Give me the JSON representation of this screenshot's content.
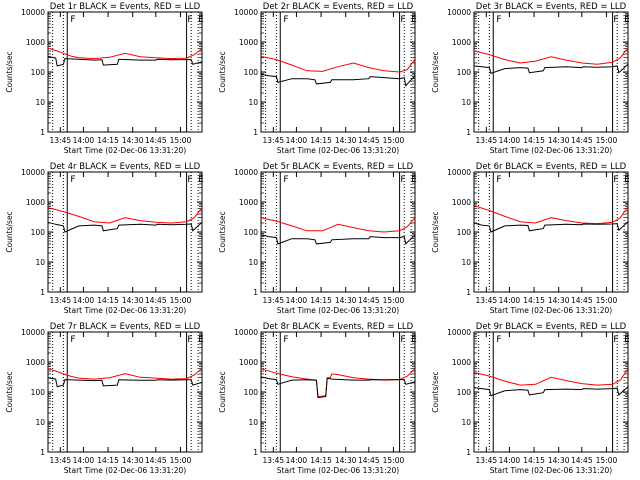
{
  "chart_data": [
    {
      "type": "line",
      "title": "Det 1r BLACK = Events, RED = LLD",
      "ylabel": "Counts/sec",
      "xlabel": "Start Time (02-Dec-06 13:31:20)",
      "yscale": "log",
      "ylim": [
        1,
        10000
      ],
      "yticks": [
        1,
        10,
        100,
        1000,
        10000
      ],
      "ytick_labels": [
        "1",
        "10",
        "100",
        "1000",
        "10000"
      ],
      "xtick_labels": [
        "13:45",
        "14:00",
        "14:15",
        "14:30",
        "14:45",
        "15:00"
      ],
      "flags": [
        "F",
        "F",
        "E"
      ],
      "series": [
        {
          "color": "#ff0000",
          "x": [
            0,
            0.05,
            0.1,
            0.15,
            0.2,
            0.3,
            0.4,
            0.5,
            0.6,
            0.7,
            0.8,
            0.9,
            0.95,
            1
          ],
          "y": [
            620,
            520,
            420,
            340,
            300,
            280,
            310,
            420,
            320,
            300,
            280,
            290,
            380,
            600
          ]
        },
        {
          "color": "#000000",
          "x": [
            0,
            0.05,
            0.06,
            0.1,
            0.11,
            0.2,
            0.3,
            0.35,
            0.36,
            0.45,
            0.46,
            0.6,
            0.7,
            0.71,
            0.8,
            0.9,
            0.93,
            0.94,
            1
          ],
          "y": [
            330,
            290,
            160,
            180,
            280,
            265,
            250,
            255,
            170,
            180,
            265,
            250,
            250,
            265,
            255,
            260,
            260,
            180,
            220
          ]
        }
      ]
    },
    {
      "type": "line",
      "title": "Det 2r BLACK = Events, RED = LLD",
      "ylabel": "Counts/sec",
      "xlabel": "Start Time (02-Dec-06 13:31:20)",
      "yscale": "log",
      "ylim": [
        1,
        10000
      ],
      "yticks": [
        1,
        10,
        100,
        1000,
        10000
      ],
      "ytick_labels": [
        "1",
        "10",
        "100",
        "1000",
        "10000"
      ],
      "xtick_labels": [
        "13:45",
        "14:00",
        "14:15",
        "14:30",
        "14:45",
        "15:00"
      ],
      "flags": [
        "F",
        "F",
        "E"
      ],
      "series": [
        {
          "color": "#ff0000",
          "x": [
            0,
            0.1,
            0.2,
            0.3,
            0.4,
            0.5,
            0.6,
            0.7,
            0.8,
            0.9,
            0.95,
            1
          ],
          "y": [
            330,
            260,
            170,
            110,
            105,
            150,
            200,
            140,
            110,
            100,
            120,
            270
          ]
        },
        {
          "color": "#000000",
          "x": [
            0,
            0.05,
            0.1,
            0.11,
            0.2,
            0.3,
            0.35,
            0.36,
            0.45,
            0.46,
            0.6,
            0.7,
            0.71,
            0.8,
            0.9,
            0.93,
            0.94,
            1
          ],
          "y": [
            85,
            75,
            70,
            45,
            60,
            60,
            55,
            40,
            45,
            55,
            55,
            60,
            70,
            65,
            60,
            65,
            35,
            75
          ]
        }
      ]
    },
    {
      "type": "line",
      "title": "Det 3r BLACK = Events, RED = LLD",
      "ylabel": "Counts/sec",
      "xlabel": "Start Time (02-Dec-06 13:31:20)",
      "yscale": "log",
      "ylim": [
        1,
        10000
      ],
      "yticks": [
        1,
        10,
        100,
        1000,
        10000
      ],
      "ytick_labels": [
        "1",
        "10",
        "100",
        "1000",
        "10000"
      ],
      "xtick_labels": [
        "13:45",
        "14:00",
        "14:15",
        "14:30",
        "14:45",
        "15:00"
      ],
      "flags": [
        "F",
        "F",
        "E"
      ],
      "series": [
        {
          "color": "#ff0000",
          "x": [
            0,
            0.1,
            0.2,
            0.3,
            0.4,
            0.5,
            0.6,
            0.7,
            0.8,
            0.9,
            0.95,
            1
          ],
          "y": [
            500,
            380,
            260,
            200,
            230,
            320,
            250,
            200,
            180,
            210,
            300,
            650
          ]
        },
        {
          "color": "#000000",
          "x": [
            0,
            0.05,
            0.1,
            0.11,
            0.2,
            0.3,
            0.35,
            0.36,
            0.45,
            0.46,
            0.6,
            0.7,
            0.71,
            0.8,
            0.9,
            0.93,
            0.94,
            1
          ],
          "y": [
            160,
            150,
            140,
            90,
            130,
            140,
            135,
            95,
            110,
            140,
            150,
            140,
            150,
            145,
            150,
            160,
            95,
            180
          ]
        }
      ]
    },
    {
      "type": "line",
      "title": "Det 4r BLACK = Events, RED = LLD",
      "ylabel": "Counts/sec",
      "xlabel": "Start Time (02-Dec-06 13:31:20)",
      "yscale": "log",
      "ylim": [
        1,
        10000
      ],
      "yticks": [
        1,
        10,
        100,
        1000,
        10000
      ],
      "ytick_labels": [
        "1",
        "10",
        "100",
        "1000",
        "10000"
      ],
      "xtick_labels": [
        "13:45",
        "14:00",
        "14:15",
        "14:30",
        "14:45",
        "15:00"
      ],
      "flags": [
        "F",
        "F",
        "E"
      ],
      "series": [
        {
          "color": "#ff0000",
          "x": [
            0,
            0.1,
            0.2,
            0.3,
            0.4,
            0.5,
            0.6,
            0.7,
            0.8,
            0.9,
            0.95,
            1
          ],
          "y": [
            650,
            480,
            330,
            220,
            200,
            300,
            240,
            210,
            200,
            220,
            300,
            650
          ]
        },
        {
          "color": "#000000",
          "x": [
            0,
            0.05,
            0.1,
            0.11,
            0.2,
            0.3,
            0.35,
            0.36,
            0.45,
            0.46,
            0.6,
            0.7,
            0.71,
            0.8,
            0.9,
            0.93,
            0.94,
            1
          ],
          "y": [
            210,
            180,
            160,
            100,
            160,
            170,
            160,
            110,
            130,
            170,
            180,
            170,
            180,
            175,
            180,
            185,
            110,
            210
          ]
        }
      ]
    },
    {
      "type": "line",
      "title": "Det 5r BLACK = Events, RED = LLD",
      "ylabel": "Counts/sec",
      "xlabel": "Start Time (02-Dec-06 13:31:20)",
      "yscale": "log",
      "ylim": [
        1,
        10000
      ],
      "yticks": [
        1,
        10,
        100,
        1000,
        10000
      ],
      "ytick_labels": [
        "1",
        "10",
        "100",
        "1000",
        "10000"
      ],
      "xtick_labels": [
        "13:45",
        "14:00",
        "14:15",
        "14:30",
        "14:45",
        "15:00"
      ],
      "flags": [
        "F",
        "F",
        "E"
      ],
      "series": [
        {
          "color": "#ff0000",
          "x": [
            0,
            0.1,
            0.2,
            0.3,
            0.4,
            0.5,
            0.6,
            0.7,
            0.8,
            0.9,
            0.95,
            1
          ],
          "y": [
            300,
            230,
            160,
            110,
            110,
            180,
            140,
            110,
            100,
            110,
            150,
            300
          ]
        },
        {
          "color": "#000000",
          "x": [
            0,
            0.05,
            0.1,
            0.11,
            0.2,
            0.3,
            0.35,
            0.36,
            0.45,
            0.46,
            0.6,
            0.7,
            0.71,
            0.8,
            0.9,
            0.93,
            0.94,
            1
          ],
          "y": [
            80,
            70,
            65,
            40,
            60,
            60,
            55,
            40,
            45,
            55,
            60,
            60,
            70,
            65,
            65,
            70,
            40,
            80
          ]
        }
      ]
    },
    {
      "type": "line",
      "title": "Det 6r BLACK = Events, RED = LLD",
      "ylabel": "Counts/sec",
      "xlabel": "Start Time (02-Dec-06 13:31:20)",
      "yscale": "log",
      "ylim": [
        1,
        10000
      ],
      "yticks": [
        1,
        10,
        100,
        1000,
        10000
      ],
      "ytick_labels": [
        "1",
        "10",
        "100",
        "1000",
        "10000"
      ],
      "xtick_labels": [
        "13:45",
        "14:00",
        "14:15",
        "14:30",
        "14:45",
        "15:00"
      ],
      "flags": [
        "F",
        "F",
        "E"
      ],
      "series": [
        {
          "color": "#ff0000",
          "x": [
            0,
            0.1,
            0.2,
            0.3,
            0.4,
            0.5,
            0.6,
            0.7,
            0.8,
            0.9,
            0.95,
            1
          ],
          "y": [
            750,
            520,
            330,
            220,
            200,
            300,
            240,
            200,
            190,
            210,
            300,
            700
          ]
        },
        {
          "color": "#000000",
          "x": [
            0,
            0.05,
            0.1,
            0.11,
            0.2,
            0.3,
            0.35,
            0.36,
            0.45,
            0.46,
            0.6,
            0.7,
            0.71,
            0.8,
            0.9,
            0.93,
            0.94,
            1
          ],
          "y": [
            200,
            170,
            160,
            100,
            160,
            170,
            165,
            110,
            130,
            170,
            180,
            175,
            185,
            180,
            185,
            190,
            115,
            220
          ]
        }
      ]
    },
    {
      "type": "line",
      "title": "Det 7r BLACK = Events, RED = LLD",
      "ylabel": "Counts/sec",
      "xlabel": "Start Time (02-Dec-06 13:31:20)",
      "yscale": "log",
      "ylim": [
        1,
        10000
      ],
      "yticks": [
        1,
        10,
        100,
        1000,
        10000
      ],
      "ytick_labels": [
        "1",
        "10",
        "100",
        "1000",
        "10000"
      ],
      "xtick_labels": [
        "13:45",
        "14:00",
        "14:15",
        "14:30",
        "14:45",
        "15:00"
      ],
      "flags": [
        "F",
        "F",
        "E"
      ],
      "series": [
        {
          "color": "#ff0000",
          "x": [
            0,
            0.05,
            0.1,
            0.15,
            0.2,
            0.3,
            0.4,
            0.5,
            0.6,
            0.7,
            0.8,
            0.9,
            0.95,
            1
          ],
          "y": [
            600,
            500,
            400,
            330,
            290,
            270,
            300,
            410,
            310,
            290,
            270,
            280,
            370,
            620
          ]
        },
        {
          "color": "#000000",
          "x": [
            0,
            0.05,
            0.06,
            0.1,
            0.11,
            0.2,
            0.3,
            0.35,
            0.36,
            0.45,
            0.46,
            0.6,
            0.7,
            0.71,
            0.8,
            0.9,
            0.93,
            0.94,
            1
          ],
          "y": [
            300,
            270,
            150,
            170,
            260,
            250,
            240,
            245,
            160,
            170,
            255,
            245,
            245,
            255,
            250,
            255,
            255,
            170,
            210
          ]
        }
      ]
    },
    {
      "type": "line",
      "title": "Det 8r BLACK = Events, RED = LLD",
      "ylabel": "Counts/sec",
      "xlabel": "Start Time (02-Dec-06 13:31:20)",
      "yscale": "log",
      "ylim": [
        1,
        10000
      ],
      "yticks": [
        1,
        10,
        100,
        1000,
        10000
      ],
      "ytick_labels": [
        "1",
        "10",
        "100",
        "1000",
        "10000"
      ],
      "xtick_labels": [
        "13:45",
        "14:00",
        "14:15",
        "14:30",
        "14:45",
        "15:00"
      ],
      "flags": [
        "F",
        "F",
        "E"
      ],
      "series": [
        {
          "color": "#ff0000",
          "x": [
            0,
            0.1,
            0.2,
            0.3,
            0.36,
            0.37,
            0.42,
            0.43,
            0.45,
            0.46,
            0.5,
            0.6,
            0.7,
            0.8,
            0.9,
            0.95,
            1
          ],
          "y": [
            600,
            420,
            320,
            270,
            250,
            70,
            75,
            300,
            300,
            400,
            380,
            300,
            270,
            250,
            260,
            340,
            600
          ]
        },
        {
          "color": "#000000",
          "x": [
            0,
            0.05,
            0.1,
            0.11,
            0.2,
            0.3,
            0.36,
            0.37,
            0.42,
            0.43,
            0.45,
            0.46,
            0.6,
            0.7,
            0.71,
            0.8,
            0.9,
            0.93,
            0.94,
            1
          ],
          "y": [
            320,
            280,
            260,
            180,
            250,
            255,
            245,
            65,
            70,
            280,
            280,
            270,
            250,
            250,
            260,
            255,
            260,
            260,
            180,
            220
          ]
        }
      ]
    },
    {
      "type": "line",
      "title": "Det 9r BLACK = Events, RED = LLD",
      "ylabel": "Counts/sec",
      "xlabel": "Start Time (02-Dec-06 13:31:20)",
      "yscale": "log",
      "ylim": [
        1,
        10000
      ],
      "yticks": [
        1,
        10,
        100,
        1000,
        10000
      ],
      "ytick_labels": [
        "1",
        "10",
        "100",
        "1000",
        "10000"
      ],
      "xtick_labels": [
        "13:45",
        "14:00",
        "14:15",
        "14:30",
        "14:45",
        "15:00"
      ],
      "flags": [
        "F",
        "F",
        "E"
      ],
      "series": [
        {
          "color": "#ff0000",
          "x": [
            0,
            0.1,
            0.2,
            0.3,
            0.4,
            0.5,
            0.6,
            0.7,
            0.8,
            0.9,
            0.95,
            1
          ],
          "y": [
            450,
            340,
            230,
            170,
            180,
            310,
            240,
            190,
            170,
            180,
            250,
            600
          ]
        },
        {
          "color": "#000000",
          "x": [
            0,
            0.05,
            0.1,
            0.11,
            0.2,
            0.3,
            0.35,
            0.36,
            0.45,
            0.46,
            0.6,
            0.7,
            0.71,
            0.8,
            0.9,
            0.93,
            0.94,
            1
          ],
          "y": [
            140,
            130,
            120,
            75,
            110,
            120,
            115,
            80,
            95,
            120,
            125,
            120,
            130,
            125,
            130,
            135,
            80,
            150
          ]
        }
      ]
    }
  ]
}
